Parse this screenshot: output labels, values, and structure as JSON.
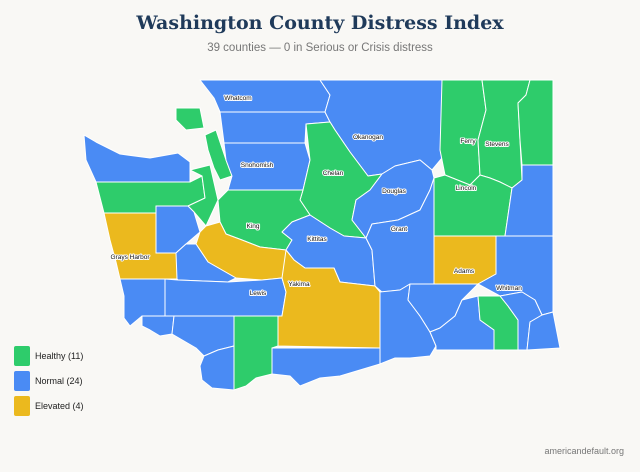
{
  "title": "Washington County Distress Index",
  "subtitle": "39 counties — 0 in Serious or Crisis distress",
  "colors": {
    "healthy": "#2ecc6b",
    "normal": "#4a8bf4",
    "elevated": "#ebb91e"
  },
  "legend": [
    {
      "label": "Healthy (11)",
      "color": "#2ecc6b"
    },
    {
      "label": "Normal (24)",
      "color": "#4a8bf4"
    },
    {
      "label": "Elevated (4)",
      "color": "#ebb91e"
    }
  ],
  "county_labels": {
    "whatcom": "Whatcom",
    "okanogan": "Okanogan",
    "ferry": "Ferry",
    "stevens": "Stevens",
    "snohomish": "Snohomish",
    "chelan": "Chelan",
    "douglas": "Douglas",
    "lincoln": "Lincoln",
    "king": "King",
    "grant": "Grant",
    "kittitas": "Kittitas",
    "grays_harbor": "Grays Harbor",
    "adams": "Adams",
    "yakima": "Yakima",
    "whitman": "Whitman",
    "lewis": "Lewis"
  },
  "source": "americandefault.org"
}
